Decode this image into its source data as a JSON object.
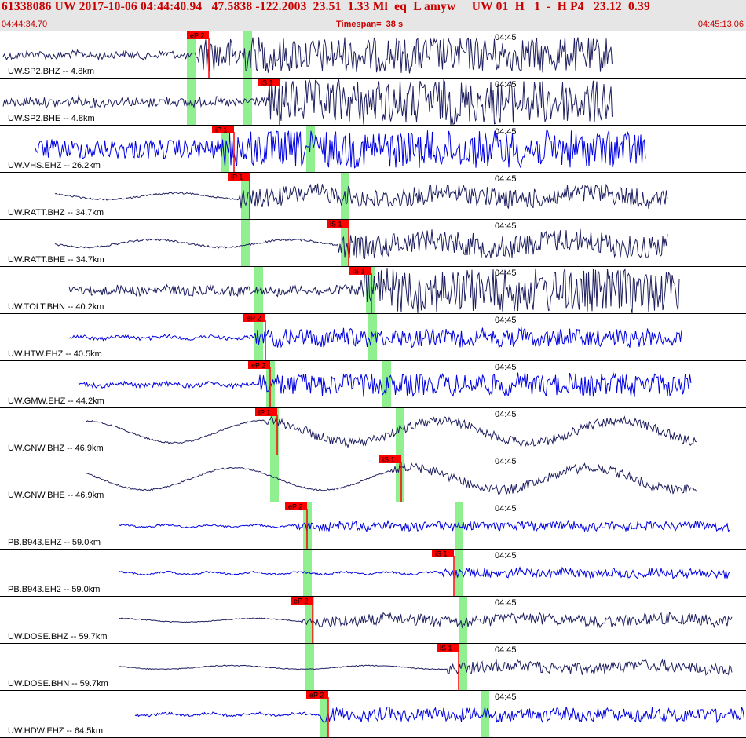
{
  "header": {
    "title": "61338086 UW 2017-10-06 04:44:40.94   47.5838 -122.2003  23.51  1.33 Ml  eq  L amyw     UW 01  H   1  -  H P4   23.12  0.39",
    "start_time": "04:44:34.70",
    "timespan": "Timespan=  38 s",
    "end_time": "04:45:13.06"
  },
  "colors": {
    "trace_dark": "#202060",
    "trace_blue": "#0000e0",
    "pick_red": "#ff0000",
    "window_green": "#90f090"
  },
  "traces": [
    {
      "label": "UW.SP2.BHZ -- 4.8km",
      "time": "04:45",
      "color": "trace_dark",
      "pick": "eP 2",
      "pick_x": 252,
      "win": [
        244,
        316
      ],
      "start": 4,
      "end": 780,
      "amp": 8,
      "noise": "mid"
    },
    {
      "label": "UW.SP2.BHE -- 4.8km",
      "time": "04:45",
      "color": "trace_dark",
      "pick": "iS 1",
      "pick_x": 342,
      "win": [
        244,
        316
      ],
      "start": 4,
      "end": 780,
      "amp": 10,
      "noise": "mid"
    },
    {
      "label": "UW.VHS.EHZ -- 26.2km",
      "time": "04:45",
      "color": "trace_blue",
      "pick": "iP 1",
      "pick_x": 284,
      "win": [
        287,
        396
      ],
      "start": 45,
      "end": 822,
      "amp": 14,
      "noise": "high"
    },
    {
      "label": "UW.RATT.BHZ -- 34.7km",
      "time": "04:45",
      "color": "trace_dark",
      "pick": "iP 1",
      "pick_x": 304,
      "win": [
        313,
        440
      ],
      "start": 70,
      "end": 850,
      "amp": 5,
      "noise": "low"
    },
    {
      "label": "UW.RATT.BHE -- 34.7km",
      "time": "04:45",
      "color": "trace_dark",
      "pick": "iS 1",
      "pick_x": 430,
      "win": [
        313,
        440
      ],
      "start": 70,
      "end": 850,
      "amp": 6,
      "noise": "low"
    },
    {
      "label": "UW.TOLT.BHN -- 40.2km",
      "time": "04:45",
      "color": "trace_dark",
      "pick": "iS 1",
      "pick_x": 459,
      "win": [
        330,
        472
      ],
      "start": 88,
      "end": 865,
      "amp": 10,
      "noise": "mid"
    },
    {
      "label": "UW.HTW.EHZ -- 40.5km",
      "time": "04:45",
      "color": "trace_blue",
      "pick": "eP 2",
      "pick_x": 324,
      "win": [
        330,
        475
      ],
      "start": 88,
      "end": 868,
      "amp": 4,
      "noise": "mid"
    },
    {
      "label": "UW.GMW.EHZ -- 44.2km",
      "time": "04:45",
      "color": "trace_blue",
      "pick": "eP 2",
      "pick_x": 330,
      "win": [
        345,
        493
      ],
      "start": 100,
      "end": 880,
      "amp": 5,
      "noise": "mid"
    },
    {
      "label": "UW.GNW.BHZ -- 46.9km",
      "time": "04:45",
      "color": "trace_dark",
      "pick": "iP 1",
      "pick_x": 339,
      "win": [
        350,
        510
      ],
      "start": 110,
      "end": 888,
      "amp": 12,
      "noise": "wave"
    },
    {
      "label": "UW.GNW.BHE -- 46.9km",
      "time": "04:45",
      "color": "trace_dark",
      "pick": "iS 1",
      "pick_x": 497,
      "win": [
        350,
        510
      ],
      "start": 110,
      "end": 888,
      "amp": 12,
      "noise": "wave"
    },
    {
      "label": "PB.B943.EHZ -- 59.0km",
      "time": "04:45",
      "color": "trace_blue",
      "pick": "eP 2",
      "pick_x": 377,
      "win": [
        392,
        585
      ],
      "start": 152,
      "end": 930,
      "amp": 2,
      "noise": "mid"
    },
    {
      "label": "PB.B943.EH2 -- 59.0km",
      "time": "04:45",
      "color": "trace_blue",
      "pick": "iS 1",
      "pick_x": 564,
      "win": [
        392,
        585
      ],
      "start": 152,
      "end": 930,
      "amp": 2,
      "noise": "mid"
    },
    {
      "label": "UW.DOSE.BHZ -- 59.7km",
      "time": "04:45",
      "color": "trace_dark",
      "pick": "eP 2",
      "pick_x": 384,
      "win": [
        395,
        590
      ],
      "start": 152,
      "end": 932,
      "amp": 3,
      "noise": "low"
    },
    {
      "label": "UW.DOSE.BHN -- 59.7km",
      "time": "04:45",
      "color": "trace_dark",
      "pick": "iS 1",
      "pick_x": 570,
      "win": [
        395,
        590
      ],
      "start": 152,
      "end": 932,
      "amp": 3,
      "noise": "low"
    },
    {
      "label": "UW.HDW.EHZ -- 64.5km",
      "time": "04:45",
      "color": "trace_blue",
      "pick": "eP 2",
      "pick_x": 404,
      "win": [
        413,
        618
      ],
      "start": 172,
      "end": 948,
      "amp": 3,
      "noise": "mid"
    }
  ]
}
